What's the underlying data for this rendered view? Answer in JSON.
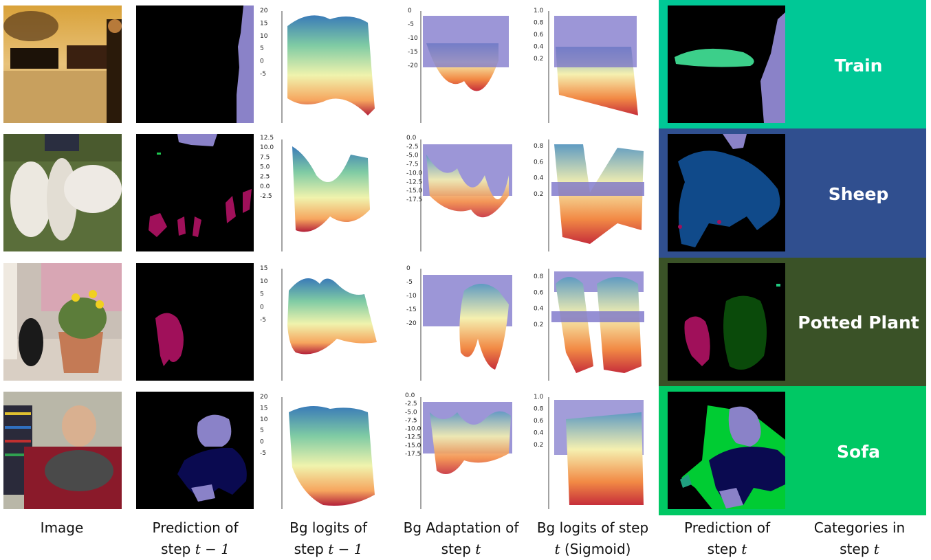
{
  "rows": [
    {
      "category": "Train",
      "color": "#00c896"
    },
    {
      "category": "Sheep",
      "color": "#304f8f"
    },
    {
      "category": "Potted Plant",
      "color": "#3a5227"
    },
    {
      "category": "Sofa",
      "color": "#00c864"
    }
  ],
  "axis_ticks": {
    "row1": {
      "bg_logits_prev": [
        "20",
        "15",
        "10",
        "5",
        "0",
        "-5"
      ],
      "bg_adapt": [
        "0",
        "-5",
        "-10",
        "-15",
        "-20"
      ],
      "bg_sigmoid": [
        "1.0",
        "0.8",
        "0.6",
        "0.4",
        "0.2"
      ]
    },
    "row2": {
      "bg_logits_prev": [
        "12.5",
        "10.0",
        "7.5",
        "5.0",
        "2.5",
        "0.0",
        "-2.5"
      ],
      "bg_adapt": [
        "0.0",
        "-2.5",
        "-5.0",
        "-7.5",
        "-10.0",
        "-12.5",
        "-15.0",
        "-17.5"
      ],
      "bg_sigmoid": [
        "0.8",
        "0.6",
        "0.4",
        "0.2"
      ]
    },
    "row3": {
      "bg_logits_prev": [
        "15",
        "10",
        "5",
        "0",
        "-5"
      ],
      "bg_adapt": [
        "0",
        "-5",
        "-10",
        "-15",
        "-20"
      ],
      "bg_sigmoid": [
        "0.8",
        "0.6",
        "0.4",
        "0.2"
      ]
    },
    "row4": {
      "bg_logits_prev": [
        "20",
        "15",
        "10",
        "5",
        "0",
        "-5"
      ],
      "bg_adapt": [
        "0.0",
        "-2.5",
        "-5.0",
        "-7.5",
        "-10.0",
        "-12.5",
        "-15.0",
        "-17.5"
      ],
      "bg_sigmoid": [
        "1.0",
        "0.8",
        "0.6",
        "0.4",
        "0.2"
      ]
    }
  },
  "captions": {
    "image": "Image",
    "pred_prev_l1": "Prediction of",
    "pred_prev_l2": "step",
    "pred_prev_math": "t − 1",
    "bg_logits_l1": "Bg logits of",
    "bg_logits_l2": "step",
    "bg_logits_math": "t − 1",
    "bg_adapt_l1": "Bg Adaptation of",
    "bg_adapt_l2": "step",
    "bg_adapt_math": "t",
    "bg_sig_l1": "Bg logits of step",
    "bg_sig_math": "t",
    "bg_sig_l2": "(Sigmoid)",
    "pred_t_l1": "Prediction of",
    "pred_t_l2": "step",
    "pred_t_math": "t",
    "cat_l1": "Categories in",
    "cat_l2": "step",
    "cat_math": "t"
  }
}
